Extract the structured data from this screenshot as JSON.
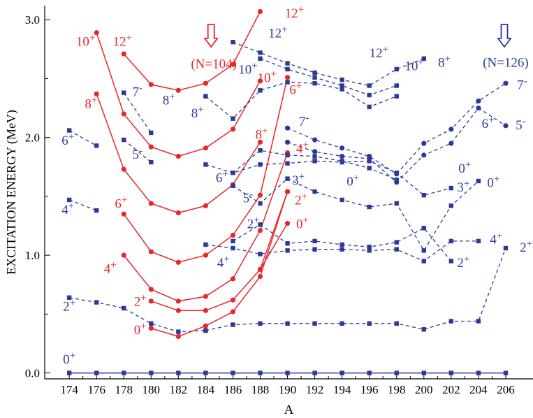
{
  "chart_data": {
    "type": "line",
    "xlabel": "A",
    "ylabel": "EXCITATION ENERGY (MeV)",
    "xlim": [
      172.2,
      208
    ],
    "ylim": [
      -0.05,
      3.12
    ],
    "x_ticks": [
      174,
      176,
      178,
      180,
      182,
      184,
      186,
      188,
      190,
      192,
      194,
      196,
      198,
      200,
      202,
      204,
      206
    ],
    "y_ticks": [
      0.0,
      1.0,
      2.0,
      3.0
    ],
    "y_tick_labels": [
      "0.0",
      "1.0",
      "2.0",
      "3.0"
    ],
    "grid": false,
    "colors": {
      "red": "#e8262b",
      "blue": "#2b3a9a"
    },
    "series": [
      {
        "color": "blue",
        "style": "solid",
        "marker": "square",
        "x": [
          174,
          176,
          178,
          180,
          182,
          184,
          186,
          188,
          190,
          192,
          194,
          196,
          198,
          200,
          202,
          204,
          206
        ],
        "y": [
          0,
          0,
          0,
          0,
          0,
          0,
          0,
          0,
          0,
          0,
          0,
          0,
          0,
          0,
          0,
          0,
          0
        ]
      },
      {
        "color": "blue",
        "style": "dashed",
        "marker": "square",
        "x": [
          174,
          176,
          178,
          180,
          182,
          184
        ],
        "y": [
          0.64,
          0.6,
          0.55,
          0.42,
          0.35,
          0.36
        ]
      },
      {
        "color": "blue",
        "style": "dashed",
        "marker": "square",
        "x": [
          184,
          186,
          188,
          190,
          192,
          194,
          196,
          198,
          200,
          202,
          204,
          206
        ],
        "y": [
          0.36,
          0.41,
          0.42,
          0.42,
          0.42,
          0.42,
          0.42,
          0.42,
          0.37,
          0.44,
          0.44,
          1.06
        ]
      },
      {
        "color": "red",
        "style": "solid",
        "marker": "circle",
        "x": [
          180,
          182,
          184,
          186,
          188,
          190
        ],
        "y": [
          0.38,
          0.31,
          0.4,
          0.52,
          0.82,
          1.54
        ]
      },
      {
        "color": "red",
        "style": "solid",
        "marker": "circle",
        "x": [
          180,
          182,
          184,
          186,
          188,
          190
        ],
        "y": [
          0.61,
          0.53,
          0.53,
          0.62,
          0.88,
          1.54
        ]
      },
      {
        "color": "red",
        "style": "solid",
        "marker": "circle",
        "x": [
          178,
          180,
          182,
          184,
          186,
          188,
          190
        ],
        "y": [
          1.0,
          0.71,
          0.61,
          0.65,
          0.8,
          1.21,
          1.87
        ]
      },
      {
        "color": "red",
        "style": "solid",
        "marker": "circle",
        "x": [
          178,
          180,
          182,
          184,
          186,
          188,
          190
        ],
        "y": [
          1.35,
          1.03,
          0.94,
          1.0,
          1.17,
          1.51,
          2.51
        ]
      },
      {
        "color": "red",
        "style": "solid",
        "marker": "circle",
        "x": [
          176,
          178,
          180,
          182,
          184,
          186,
          188
        ],
        "y": [
          2.37,
          1.73,
          1.44,
          1.36,
          1.42,
          1.6,
          1.96
        ]
      },
      {
        "color": "red",
        "style": "solid",
        "marker": "circle",
        "x": [
          176,
          178,
          180,
          182,
          184,
          186,
          188
        ],
        "y": [
          2.89,
          2.2,
          1.92,
          1.84,
          1.91,
          2.07,
          2.48
        ]
      },
      {
        "color": "red",
        "style": "solid",
        "marker": "circle",
        "x": [
          178,
          180,
          182,
          184,
          186,
          188
        ],
        "y": [
          2.71,
          2.45,
          2.4,
          2.46,
          2.62,
          3.07
        ]
      },
      {
        "color": "red",
        "style": "solid",
        "marker": "circle",
        "x": [
          188,
          190
        ],
        "y": [
          0.88,
          1.27
        ]
      },
      {
        "color": "blue",
        "style": "dashed",
        "marker": "square",
        "x": [
          174,
          176
        ],
        "y": [
          1.47,
          1.38
        ]
      },
      {
        "color": "blue",
        "style": "dashed",
        "marker": "square",
        "x": [
          174,
          176
        ],
        "y": [
          2.06,
          1.93
        ]
      },
      {
        "color": "blue",
        "style": "dashed",
        "marker": "square",
        "x": [
          178,
          180
        ],
        "y": [
          1.98,
          1.79
        ]
      },
      {
        "color": "blue",
        "style": "dashed",
        "marker": "square",
        "x": [
          178,
          180
        ],
        "y": [
          2.38,
          2.04
        ]
      },
      {
        "color": "blue",
        "style": "dashed",
        "marker": "square",
        "x": [
          184,
          186,
          188,
          190,
          192,
          194,
          196,
          198,
          200,
          202,
          204
        ],
        "y": [
          1.09,
          1.06,
          1.01,
          1.04,
          1.05,
          1.05,
          1.04,
          1.05,
          0.95,
          1.12,
          1.12
        ]
      },
      {
        "color": "blue",
        "style": "dashed",
        "marker": "square",
        "x": [
          186,
          188,
          190,
          192,
          194,
          196,
          198,
          200,
          202
        ],
        "y": [
          1.12,
          1.26,
          1.1,
          1.12,
          1.09,
          1.07,
          1.11,
          1.23,
          0.95
        ]
      },
      {
        "color": "blue",
        "style": "dashed",
        "marker": "square",
        "x": [
          186,
          188,
          190,
          192,
          194,
          196,
          198,
          200,
          202,
          204
        ],
        "y": [
          1.59,
          1.44,
          1.65,
          1.54,
          1.47,
          1.41,
          1.44,
          1.04,
          1.42,
          1.63
        ]
      },
      {
        "color": "blue",
        "style": "dashed",
        "marker": "square",
        "x": [
          184,
          186,
          188,
          190,
          192,
          194,
          196,
          198,
          200,
          202
        ],
        "y": [
          1.77,
          1.7,
          1.77,
          1.78,
          1.8,
          1.79,
          1.8,
          1.7,
          1.51,
          1.57
        ]
      },
      {
        "color": "blue",
        "style": "dashed",
        "marker": "square",
        "x": [
          186,
          188,
          190,
          192,
          194,
          196,
          198
        ],
        "y": [
          1.7,
          1.89,
          1.85,
          1.84,
          1.8,
          1.74,
          1.64
        ]
      },
      {
        "color": "blue",
        "style": "dashed",
        "marker": "square",
        "x": [
          184,
          186,
          188,
          190,
          192,
          194,
          196,
          198
        ],
        "y": [
          2.35,
          2.16,
          2.4,
          2.47,
          2.46,
          2.41,
          2.26,
          2.35
        ]
      },
      {
        "color": "blue",
        "style": "dashed",
        "marker": "square",
        "x": [
          186,
          188,
          190,
          192,
          194,
          196,
          198,
          200
        ],
        "y": [
          2.81,
          2.72,
          2.63,
          2.55,
          2.49,
          2.44,
          2.58,
          2.67
        ]
      },
      {
        "color": "blue",
        "style": "dashed",
        "marker": "square",
        "x": [
          188,
          190,
          192,
          194,
          196,
          198
        ],
        "y": [
          2.67,
          2.58,
          2.51,
          2.44,
          2.36,
          2.44
        ]
      },
      {
        "color": "blue",
        "style": "dashed",
        "marker": "circle",
        "x": [
          190,
          192,
          194,
          196,
          198,
          200,
          202,
          204,
          206
        ],
        "y": [
          2.08,
          1.98,
          1.91,
          1.84,
          1.69,
          1.95,
          2.07,
          2.31,
          2.46
        ]
      },
      {
        "color": "blue",
        "style": "dashed",
        "marker": "circle",
        "x": [
          190,
          192,
          194,
          196,
          198,
          200,
          202,
          204,
          206
        ],
        "y": [
          1.96,
          1.88,
          1.84,
          1.82,
          1.62,
          1.85,
          1.95,
          2.25,
          2.1
        ]
      }
    ],
    "annotations": [
      {
        "text": "0",
        "sup": "+",
        "color": "blue",
        "x": 174.0,
        "y": 0.08
      },
      {
        "text": "2",
        "sup": "+",
        "color": "blue",
        "x": 174.0,
        "y": 0.53
      },
      {
        "text": "4",
        "sup": "+",
        "color": "blue",
        "x": 173.9,
        "y": 1.35
      },
      {
        "text": "6",
        "sup": "+",
        "color": "blue",
        "x": 173.9,
        "y": 1.94
      },
      {
        "text": "10",
        "sup": "+",
        "color": "red",
        "x": 175.2,
        "y": 2.78
      },
      {
        "text": "12",
        "sup": "+",
        "color": "red",
        "x": 177.9,
        "y": 2.78
      },
      {
        "text": "8",
        "sup": "+",
        "color": "red",
        "x": 175.6,
        "y": 2.25
      },
      {
        "text": "7",
        "sup": "-",
        "color": "blue",
        "x": 179.0,
        "y": 2.35
      },
      {
        "text": "8",
        "sup": "+",
        "color": "blue",
        "x": 181.3,
        "y": 2.28
      },
      {
        "text": "5",
        "sup": "-",
        "color": "blue",
        "x": 179.0,
        "y": 1.82
      },
      {
        "text": "6",
        "sup": "+",
        "color": "red",
        "x": 177.8,
        "y": 1.4
      },
      {
        "text": "4",
        "sup": "+",
        "color": "red",
        "x": 177.0,
        "y": 0.85
      },
      {
        "text": "2",
        "sup": "+",
        "color": "red",
        "x": 179.2,
        "y": 0.57
      },
      {
        "text": "0",
        "sup": "+",
        "color": "red",
        "x": 179.2,
        "y": 0.33
      },
      {
        "text": "(N=104)",
        "sup": "",
        "color": "red",
        "x": 184.6,
        "y": 2.59
      },
      {
        "text": "12",
        "sup": "+",
        "color": "red",
        "x": 190.5,
        "y": 3.02
      },
      {
        "text": "10",
        "sup": "+",
        "color": "red",
        "x": 188.5,
        "y": 2.47
      },
      {
        "text": "10",
        "sup": "+",
        "color": "blue",
        "x": 187.1,
        "y": 2.54
      },
      {
        "text": "12",
        "sup": "+",
        "color": "blue",
        "x": 189.3,
        "y": 2.85
      },
      {
        "text": "8",
        "sup": "+",
        "color": "blue",
        "x": 183.4,
        "y": 2.17
      },
      {
        "text": "6",
        "sup": "+",
        "color": "red",
        "x": 190.6,
        "y": 2.37
      },
      {
        "text": "8",
        "sup": "+",
        "color": "red",
        "x": 188.1,
        "y": 1.99
      },
      {
        "text": "4",
        "sup": "+",
        "color": "red",
        "x": 191.1,
        "y": 1.87
      },
      {
        "text": "6",
        "sup": "+",
        "color": "blue",
        "x": 185.2,
        "y": 1.62
      },
      {
        "text": "5",
        "sup": "-",
        "color": "blue",
        "x": 187.1,
        "y": 1.45
      },
      {
        "text": "2",
        "sup": "+",
        "color": "red",
        "x": 191.0,
        "y": 1.43
      },
      {
        "text": "3",
        "sup": "+",
        "color": "blue",
        "x": 190.8,
        "y": 1.6
      },
      {
        "text": "2",
        "sup": "+",
        "color": "blue",
        "x": 187.5,
        "y": 1.23
      },
      {
        "text": "0",
        "sup": "+",
        "color": "red",
        "x": 191.1,
        "y": 1.23
      },
      {
        "text": "4",
        "sup": "+",
        "color": "blue",
        "x": 185.3,
        "y": 0.9
      },
      {
        "text": "7",
        "sup": "-",
        "color": "blue",
        "x": 191.2,
        "y": 2.1
      },
      {
        "text": "0",
        "sup": "+",
        "color": "blue",
        "x": 194.8,
        "y": 1.59
      },
      {
        "text": "12",
        "sup": "+",
        "color": "blue",
        "x": 196.7,
        "y": 2.68
      },
      {
        "text": "10",
        "sup": "+",
        "color": "blue",
        "x": 199.3,
        "y": 2.57
      },
      {
        "text": "8",
        "sup": "+",
        "color": "blue",
        "x": 201.5,
        "y": 2.6
      },
      {
        "text": "(N=126)",
        "sup": "",
        "color": "blue",
        "x": 206.0,
        "y": 2.6
      },
      {
        "text": "7",
        "sup": "-",
        "color": "blue",
        "x": 207.2,
        "y": 2.41
      },
      {
        "text": "6",
        "sup": "+",
        "color": "blue",
        "x": 204.7,
        "y": 2.08
      },
      {
        "text": "5",
        "sup": "-",
        "color": "blue",
        "x": 207.1,
        "y": 2.07
      },
      {
        "text": "0",
        "sup": "+",
        "color": "blue",
        "x": 203.0,
        "y": 1.7
      },
      {
        "text": "3",
        "sup": "+",
        "color": "blue",
        "x": 202.9,
        "y": 1.54
      },
      {
        "text": "0",
        "sup": "+",
        "color": "blue",
        "x": 205.1,
        "y": 1.58
      },
      {
        "text": "4",
        "sup": "+",
        "color": "blue",
        "x": 205.3,
        "y": 1.1
      },
      {
        "text": "2",
        "sup": "+",
        "color": "blue",
        "x": 202.9,
        "y": 0.9
      },
      {
        "text": "2",
        "sup": "+",
        "color": "blue",
        "x": 207.5,
        "y": 1.03
      }
    ],
    "arrows_down": [
      {
        "color": "red",
        "x": 184.4,
        "y_top": 2.96,
        "y_bottom": 2.77
      },
      {
        "color": "blue",
        "x": 205.9,
        "y_top": 2.96,
        "y_bottom": 2.77
      }
    ]
  }
}
